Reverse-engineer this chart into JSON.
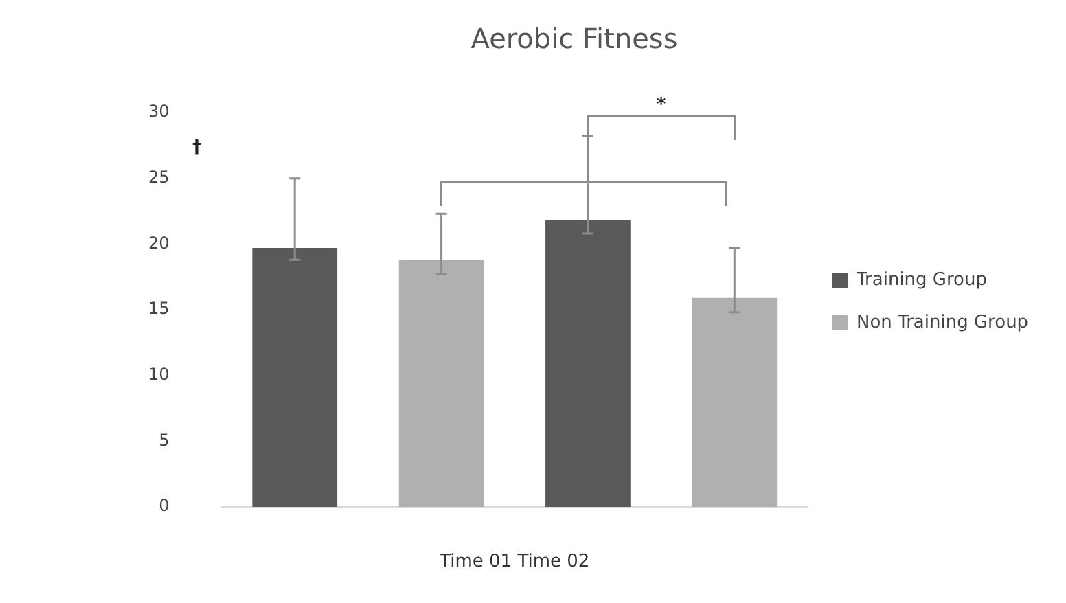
{
  "chart_data": {
    "type": "bar",
    "title": "Aerobic Fitness",
    "xlabel": "Time 01 Time 02",
    "categories": [
      null,
      null
    ],
    "series": [
      {
        "name": "Training Group",
        "color": "#595959",
        "values": [
          19.7,
          21.8
        ],
        "errors": [
          [
            18.8,
            25.0
          ],
          [
            20.8,
            28.2
          ]
        ]
      },
      {
        "name": "Non Training Group",
        "color": "#b0b0b0",
        "values": [
          18.8,
          15.9
        ],
        "errors": [
          [
            17.7,
            22.3
          ],
          [
            14.8,
            19.7
          ]
        ]
      }
    ],
    "ylim": [
      0,
      30
    ],
    "yticks": [
      0,
      5,
      10,
      15,
      20,
      25,
      30
    ],
    "grid": false,
    "legend": "right",
    "annotations": [
      "*",
      "†"
    ]
  }
}
